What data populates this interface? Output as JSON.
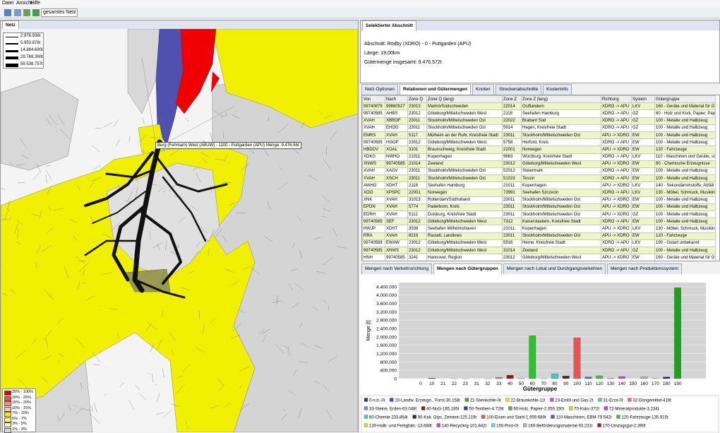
{
  "menu": [
    "Datei",
    "Ansicht",
    "Hilfe"
  ],
  "toolbar": {
    "scope": "gesamtes Netz"
  },
  "map_panel": {
    "tab": "Netz",
    "flow_legend": [
      "2.976.936t",
      "5.953.876t",
      "14.884.690t",
      "29.769.380t",
      "59.538.757t"
    ],
    "tooltip": "Burg (Fehmarn) West (ABUW) - 1100 - Puttgarden (APU) Menge: 9.476.56t",
    "share_legend": [
      {
        "label": "25% - 100%",
        "color": "#e00000"
      },
      {
        "label": "20% - 25%",
        "color": "#ff4848"
      },
      {
        "label": "15% - 20%",
        "color": "#ff8c8c"
      },
      {
        "label": "10% - 15%",
        "color": "#ffc0c0"
      },
      {
        "label": "7% - 10%",
        "color": "#f0f000"
      },
      {
        "label": "5% - 7%",
        "color": "#f8f870"
      },
      {
        "label": "3% - 5%",
        "color": "#fcfcb0"
      },
      {
        "label": "1% - 3%",
        "color": "#d8d8d8"
      }
    ]
  },
  "section_panel": {
    "tab": "Selektierter Abschnitt",
    "lines": [
      "Abschnitt: Rödby (XDRO) - 0 - Puttgarden (APU)",
      "Länge: 19,00km",
      "Gütermenge insgesamt: 9.476.572t"
    ]
  },
  "tabs": [
    "Netz-Optionen",
    "Relationen und Gütermengen",
    "Knoten",
    "Streckenabschnitte",
    "Kosteninfo"
  ],
  "table": {
    "header": [
      "Von",
      "Nach",
      "Zone Q",
      "Zone Q (lang)",
      "Zone Z",
      "Zone Z (lang)",
      "Richtung",
      "System",
      "Gütergruppe"
    ],
    "rows": [
      [
        "99740879",
        "99880527",
        "23013",
        "Malmö/Südschweden",
        "22014",
        "Ostflandern",
        "XDRO -> APU",
        "LKV",
        "160 - Geräte und Material für G"
      ],
      [
        "99740585",
        "AHBS",
        "23012",
        "Göteborg/Mittelschweden West",
        "2118",
        "Seehafen Hamburg",
        "XDRO -> APU",
        "GZ",
        "60 - Holz und Kork, Papier, Pap"
      ],
      [
        "XVAH",
        "XBROF",
        "23011",
        "Stockholm/Mittelschweden Ost",
        "22022",
        "Brabant Süd",
        "XDRO -> APU",
        "GZ",
        "100 - Metalle und Halbzeug"
      ],
      [
        "XVAH",
        "EHOG",
        "23011",
        "Stockholm/Mittelschweden Ost",
        "5914",
        "Hagen, Kreisfreie Stadt",
        "XDRO -> APU",
        "GZ",
        "100 - Metalle und Halbzeug"
      ],
      [
        "EMRS",
        "XVAH",
        "5117",
        "Mülheim an der Ruhr, Kreisfreie Stadt",
        "23011",
        "Stockholm/Mittelschweden Ost",
        "APU -> XDRO",
        "EW",
        "100 - Metalle und Halbzeug"
      ],
      [
        "99740585",
        "HGOP",
        "23012",
        "Göteborg/Mittelschweden West",
        "5758",
        "Herford, Kreis",
        "XDRO -> APU",
        "EW",
        "100 - Metalle und Halbzeug"
      ],
      [
        "HBDDV",
        "XOAL",
        "3101",
        "Braunschweig, Kreisfreie Stadt",
        "22001",
        "Norwegen",
        "APU -> XDRO",
        "EW",
        "120 - Fahrzeuge"
      ],
      [
        "XDKG",
        "NWHO",
        "21011",
        "Kopenhagen",
        "9663",
        "Würzburg, Kreisfreie Stadt",
        "XDRO -> APU",
        "LKV",
        "110 - Maschinen und Geräte, so"
      ],
      [
        "XNWS",
        "99740585",
        "21014",
        "Zeeland",
        "23012",
        "Göteborg/Mittelschweden West",
        "APU -> XDRO",
        "EW",
        "80 - Chemische Erzeugnisse"
      ],
      [
        "XVAH",
        "XAGV",
        "23011",
        "Stockholm/Mittelschweden Ost",
        "52012",
        "Steiermark",
        "XDRO -> APU",
        "EW",
        "100 - Metalle und Halbzeug"
      ],
      [
        "XVAH",
        "XSCH",
        "23011",
        "Stockholm/Mittelschweden Ost",
        "51023",
        "Tessin",
        "XDRO -> APU",
        "EW",
        "100 - Metalle und Halbzeug"
      ],
      [
        "AWHO",
        "XDHT",
        "2118",
        "Seehafen Hamburg",
        "21011",
        "Kopenhagen",
        "APU -> XDRO",
        "LKV",
        "140 - Sekundärrohstoffe, Abfäll"
      ],
      [
        "XOO",
        "XPSPC",
        "22001",
        "Norwegen",
        "73991",
        "Seehafen Szczecin",
        "XDRO -> APU",
        "LKV",
        "130 - Möbel, Schmuck, Musikinstru"
      ],
      [
        "XNK",
        "XVAH",
        "31013",
        "Rotterdam/Südholland",
        "23011",
        "Stockholm/Mittelschweden Ost",
        "APU -> XDRO",
        "EW",
        "100 - Metalle und Halbzeug"
      ],
      [
        "EPDN",
        "XVAH",
        "5774",
        "Paderborn, Kreis",
        "23011",
        "Stockholm/Mittelschweden Ost",
        "APU -> XDRO",
        "EW",
        "100 - Metalle und Halbzeug"
      ],
      [
        "EDRH",
        "XVAH",
        "5112",
        "Duisburg, Kreisfreie Stadt",
        "23011",
        "Stockholm/Mittelschweden Ost",
        "APU -> XDRO",
        "GZ",
        "100 - Metalle und Halbzeug"
      ],
      [
        "99740585",
        "SEF",
        "23012",
        "Göteborg/Mittelschweden West",
        "7312",
        "Kaiserslautern, Kreisfreie Stadt",
        "XDRO -> APU",
        "EW",
        "100 - Metalle und Halbzeug"
      ],
      [
        "HWJP",
        "XDHT",
        "3538",
        "Seehafen Wilhelmshaven",
        "21011",
        "Kopenhagen",
        "APU -> XDRO",
        "LKV",
        "130 - Möbel, Schmuck, Musikinstru"
      ],
      [
        "RRA",
        "XVAH",
        "8216",
        "Rastatt, Landkreis",
        "23011",
        "Stockholm/Mittelschweden Ost",
        "APU -> XDRO",
        "EW",
        "120 - Fahrzeuge"
      ],
      [
        "99740588",
        "EWAW",
        "23012",
        "Göteborg/Mittelschweden West",
        "5916",
        "Herne, Kreisfreie Stadt",
        "XDRO -> APU",
        "LKV",
        "190 - Gutart unbekannt"
      ],
      [
        "99740585",
        "XNWS",
        "23012",
        "Göteborg/Mittelschweden West",
        "31014",
        "Zeeland",
        "XDRO -> APU",
        "GZ",
        "100 - Metalle und Halbzeug"
      ],
      [
        "HNH",
        "99740585",
        "3241",
        "Hannover, Region",
        "23012",
        "Göteborg/Mittelschweden West",
        "APU -> XDRO",
        "EW",
        "160 - Geräte und Material für G"
      ]
    ]
  },
  "chart_tabs": [
    "Mengen nach Verkehrsrichtung",
    "Mengen nach Gütergruppen",
    "Mengen nach Lokal und Durchgangsverkehren",
    "Mengen nach Produktionssystem"
  ],
  "chart_data": {
    "type": "bar",
    "x_label": "Gütergruppe",
    "y_label": "Menge [t]",
    "categories": [
      "0",
      "10",
      "21",
      "22",
      "23",
      "31",
      "32",
      "33",
      "40",
      "50",
      "60",
      "70",
      "80",
      "90",
      "100",
      "110",
      "120",
      "130",
      "140",
      "150",
      "160",
      "170",
      "180",
      "190"
    ],
    "values": [
      0,
      30158,
      0,
      11,
      2,
      0,
      419,
      63048,
      165185,
      4728,
      2059150,
      372,
      233864,
      125219,
      1959689,
      79542,
      135915,
      13688,
      101842,
      0,
      93231,
      2390,
      80000,
      4350000
    ],
    "colors": [
      "#3a3a90",
      "#3050d0",
      "#30b030",
      "#e0e040",
      "#e040e0",
      "#40d0d0",
      "#e07070",
      "#909090",
      "#a01010",
      "#2040c0",
      "#30c030",
      "#d0d030",
      "#40c8d0",
      "#303030",
      "#f05050",
      "#4060e0",
      "#40c040",
      "#d8d840",
      "#d040d0",
      "#60d8e0",
      "#b0b0b0",
      "#b01818",
      "#202080",
      "#20a020"
    ],
    "ylim": [
      0,
      4600000
    ],
    "yticks": [
      0,
      {
        "value": 400000,
        "label": "400.000"
      },
      {
        "value": 800000,
        "label": "800.000"
      },
      {
        "value": 1200000,
        "label": "1.200.000"
      },
      {
        "value": 1600000,
        "label": "1.600.000"
      },
      {
        "value": 2000000,
        "label": "2.000.000"
      },
      {
        "value": 2400000,
        "label": "2.400.000"
      },
      {
        "value": 2800000,
        "label": "2.800.000"
      },
      {
        "value": 3200000,
        "label": "3.200.000"
      },
      {
        "value": 3600000,
        "label": "3.600.000"
      },
      {
        "value": 4000000,
        "label": "4.000.000"
      },
      {
        "value": 4400000,
        "label": "4.400.000"
      }
    ],
    "grid": true,
    "legend": [
      [
        {
          "label": "0-n.b.-0t",
          "color": "#3a3a90"
        },
        {
          "label": "10-Landw. Erzeugn., Forst-30.158t",
          "color": "#3050d0"
        },
        {
          "label": "21-Steinkohle-0t",
          "color": "#30b030"
        },
        {
          "label": "22-Braunkohle-11t",
          "color": "#e0e040"
        },
        {
          "label": "23-Erdöl und Gas-2t",
          "color": "#e040e0"
        },
        {
          "label": "31-Erze-0t",
          "color": "#40d0d0"
        },
        {
          "label": "32-Düngemittel-419t",
          "color": "#e07070"
        }
      ],
      [
        {
          "label": "33-Steine, Erden-63.048t",
          "color": "#909090"
        },
        {
          "label": "40-NuG-165.185t",
          "color": "#a01010"
        },
        {
          "label": "50-Textilien-4.728t",
          "color": "#2040c0"
        },
        {
          "label": "60-Holz, Papier-2.059.150t",
          "color": "#30c030"
        },
        {
          "label": "70-Koks-372t",
          "color": "#d0d030"
        },
        {
          "label": "72-Mineralprodukte-3.234t",
          "color": "#e030e0"
        }
      ],
      [
        {
          "label": "80-Chemie-233.864t",
          "color": "#40c8d0"
        },
        {
          "label": "90-Kali, Gips, Zement-125.219t",
          "color": "#303030"
        },
        {
          "label": "100-Eisen und Stahl-1.959.689t",
          "color": "#f05050"
        },
        {
          "label": "110-Maschinen, EBM-79.542t",
          "color": "#4060e0"
        },
        {
          "label": "120-Fahrzeuge-135.915t",
          "color": "#40c040"
        }
      ],
      [
        {
          "label": "130-Halb- und Fertigfabr.-13.688t",
          "color": "#d8d840"
        },
        {
          "label": "140-Recycling-101.842t",
          "color": "#d040d0"
        },
        {
          "label": "150-Post-0t",
          "color": "#60d8e0"
        },
        {
          "label": "160-Beförderungsmaterial-93.231t",
          "color": "#b0b0b0"
        },
        {
          "label": "170-Umzugsgut-2.390t",
          "color": "#b01818"
        }
      ]
    ]
  }
}
